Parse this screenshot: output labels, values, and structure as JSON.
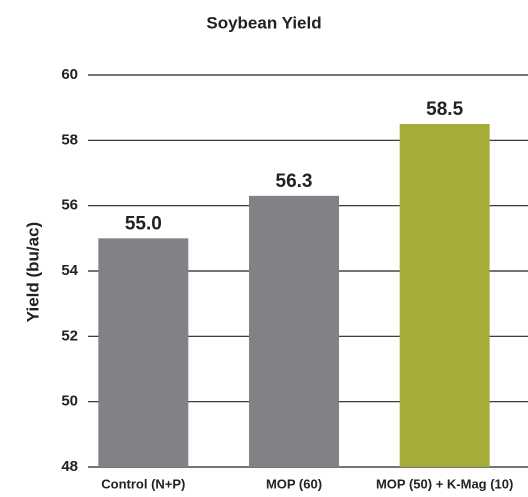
{
  "chart_data": {
    "type": "bar",
    "title": "Soybean Yield",
    "ylabel": "Yield (bu/ac)",
    "categories": [
      "Control (N+P)",
      "MOP (60)",
      "MOP (50) + K-Mag (10)"
    ],
    "values": [
      55.0,
      56.3,
      58.5
    ],
    "value_labels": [
      "55.0",
      "56.3",
      "58.5"
    ],
    "colors": [
      "#808285",
      "#808285",
      "#a5ad37"
    ],
    "ylim": [
      48,
      60
    ],
    "yticks": [
      48,
      50,
      52,
      54,
      56,
      58,
      60
    ],
    "grid": true
  }
}
